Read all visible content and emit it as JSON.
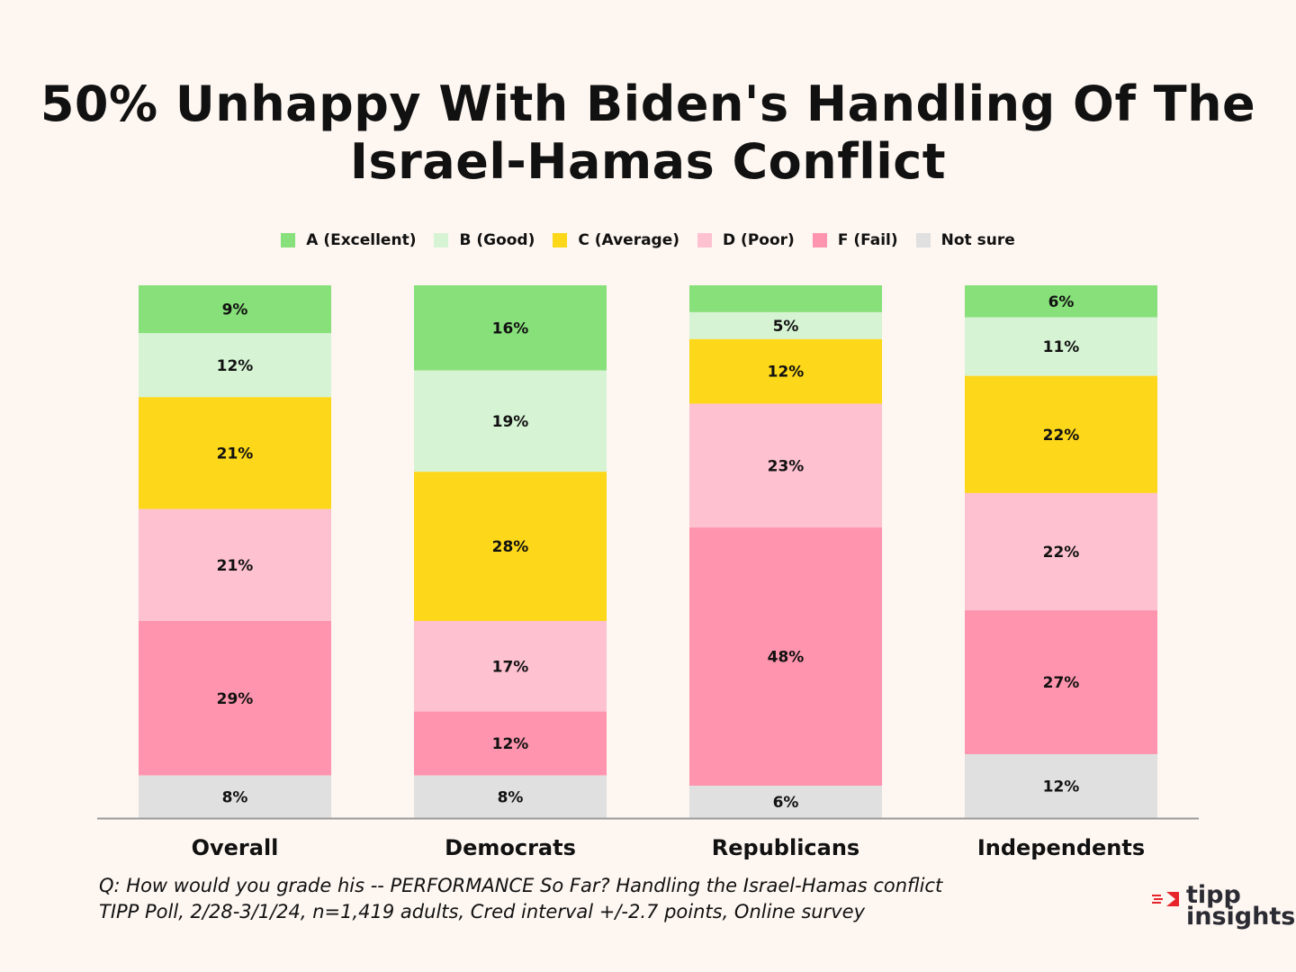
{
  "title": {
    "line1": "50% Unhappy With Biden's Handling Of The",
    "line2": "Israel-Hamas Conflict"
  },
  "legend": [
    {
      "label": "A (Excellent)",
      "color": "#88e07a"
    },
    {
      "label": "B (Good)",
      "color": "#d6f4d4"
    },
    {
      "label": "C (Average)",
      "color": "#fdd71a"
    },
    {
      "label": "D (Poor)",
      "color": "#fec1d0"
    },
    {
      "label": "F (Fail)",
      "color": "#fe94ad"
    },
    {
      "label": "Not sure",
      "color": "#e0e0e0"
    }
  ],
  "chart_data": {
    "type": "bar",
    "stacked": true,
    "categories": [
      "Overall",
      "Democrats",
      "Republicans",
      "Independents"
    ],
    "series": [
      {
        "name": "A (Excellent)",
        "color": "#88e07a",
        "values": [
          9,
          16,
          5,
          6
        ],
        "labels": [
          "9%",
          "16%",
          "",
          "6%"
        ]
      },
      {
        "name": "B (Good)",
        "color": "#d6f4d4",
        "values": [
          12,
          19,
          5,
          11
        ],
        "labels": [
          "12%",
          "19%",
          "5%",
          "11%"
        ]
      },
      {
        "name": "C (Average)",
        "color": "#fdd71a",
        "values": [
          21,
          28,
          12,
          22
        ],
        "labels": [
          "21%",
          "28%",
          "12%",
          "22%"
        ]
      },
      {
        "name": "D (Poor)",
        "color": "#fec1d0",
        "values": [
          21,
          17,
          23,
          22
        ],
        "labels": [
          "21%",
          "17%",
          "23%",
          "22%"
        ]
      },
      {
        "name": "F (Fail)",
        "color": "#fe94ad",
        "values": [
          29,
          12,
          48,
          27
        ],
        "labels": [
          "29%",
          "12%",
          "48%",
          "27%"
        ]
      },
      {
        "name": "Not sure",
        "color": "#e0e0e0",
        "values": [
          8,
          8,
          6,
          12
        ],
        "labels": [
          "8%",
          "8%",
          "6%",
          "12%"
        ]
      }
    ],
    "legend_position": "top",
    "grid": false
  },
  "footer": {
    "line1": "Q:  How would you grade his -- PERFORMANCE So Far? Handling the Israel-Hamas conflict",
    "line2": "TIPP Poll, 2/28-3/1/24, n=1,419 adults, Cred interval +/-2.7 points, Online survey"
  },
  "logo": {
    "line1": "tipp",
    "line2": "insights",
    "accent": "#e8242b"
  }
}
